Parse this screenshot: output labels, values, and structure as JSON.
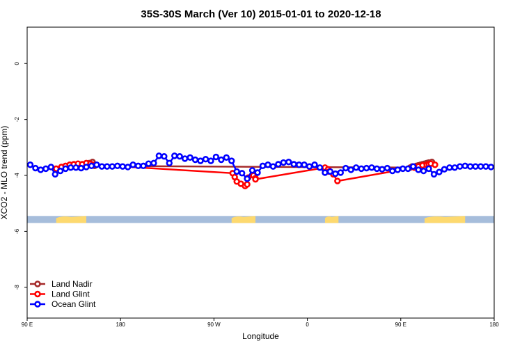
{
  "chart_data": {
    "type": "line",
    "title": "35S-30S March (Ver 10)   2015-01-01 to 2020-12-18",
    "xlabel": "Longitude",
    "ylabel": "XCO2 - MLO trend (ppm)",
    "xlim": [
      90,
      540
    ],
    "ylim": [
      -9.1,
      1.3
    ],
    "x_ticks": [
      {
        "value": 90,
        "label": "90 E"
      },
      {
        "value": 180,
        "label": "180"
      },
      {
        "value": 270,
        "label": "90 W"
      },
      {
        "value": 360,
        "label": "0"
      },
      {
        "value": 450,
        "label": "90 E"
      },
      {
        "value": 540,
        "label": "180"
      }
    ],
    "y_ticks": [
      {
        "value": 0,
        "label": "0"
      },
      {
        "value": -2,
        "label": "-2"
      },
      {
        "value": -4,
        "label": "-4"
      },
      {
        "value": -6,
        "label": "-6"
      },
      {
        "value": -8,
        "label": "-8"
      }
    ],
    "land_strip": {
      "y_range": [
        -5.7,
        -5.45
      ],
      "ocean_color": "#a6bddb",
      "land_color": "#fdd96f",
      "land_segments": [
        [
          118,
          147
        ],
        [
          287,
          310
        ],
        [
          377,
          390
        ],
        [
          473,
          512
        ]
      ]
    },
    "series": [
      {
        "name": "Land Nadir",
        "color": "#a52a2a",
        "x": [
          150,
          153,
          155,
          459,
          461,
          465,
          467,
          469,
          471,
          473,
          475,
          477,
          480
        ],
        "y": [
          -3.56,
          -3.52,
          -3.66,
          -3.72,
          -3.68,
          -3.66,
          -3.64,
          -3.62,
          -3.6,
          -3.58,
          -3.56,
          -3.54,
          -3.52
        ]
      },
      {
        "name": "Land Glint",
        "color": "#ff0000",
        "x": [
          118,
          123,
          127,
          131,
          135,
          139,
          143,
          147,
          151,
          153,
          288,
          290,
          292,
          296,
          300,
          302,
          303,
          308,
          310,
          310,
          377,
          380,
          381,
          385,
          389,
          463,
          467,
          471,
          475,
          477,
          479,
          483
        ],
        "y": [
          -3.76,
          -3.7,
          -3.66,
          -3.62,
          -3.6,
          -3.58,
          -3.6,
          -3.56,
          -3.58,
          -3.62,
          -3.92,
          -4.06,
          -4.22,
          -4.3,
          -4.38,
          -4.32,
          -4.08,
          -4.0,
          -4.1,
          -4.14,
          -3.72,
          -3.78,
          -3.86,
          -3.96,
          -4.2,
          -3.72,
          -3.68,
          -3.64,
          -3.62,
          -3.6,
          -3.58,
          -3.62
        ]
      },
      {
        "name": "Ocean Glint",
        "color": "#0000ff",
        "x": [
          93,
          98,
          103,
          108,
          113,
          117,
          122,
          127,
          132,
          137,
          142,
          147,
          152,
          157,
          162,
          167,
          172,
          177,
          182,
          187,
          192,
          197,
          202,
          207,
          212,
          217,
          222,
          227,
          232,
          237,
          242,
          247,
          252,
          257,
          262,
          267,
          272,
          277,
          282,
          287,
          292,
          297,
          302,
          307,
          312,
          317,
          322,
          327,
          332,
          337,
          342,
          347,
          352,
          357,
          362,
          367,
          372,
          377,
          382,
          387,
          392,
          397,
          402,
          407,
          412,
          417,
          422,
          427,
          432,
          437,
          442,
          447,
          452,
          457,
          462,
          467,
          472,
          477,
          482,
          487,
          492,
          497,
          502,
          507,
          512,
          517,
          522,
          527,
          532,
          537
        ],
        "y": [
          -3.62,
          -3.74,
          -3.8,
          -3.76,
          -3.7,
          -3.96,
          -3.84,
          -3.76,
          -3.72,
          -3.72,
          -3.74,
          -3.7,
          -3.66,
          -3.62,
          -3.68,
          -3.68,
          -3.68,
          -3.66,
          -3.68,
          -3.7,
          -3.62,
          -3.66,
          -3.66,
          -3.58,
          -3.56,
          -3.3,
          -3.32,
          -3.56,
          -3.3,
          -3.32,
          -3.4,
          -3.36,
          -3.44,
          -3.48,
          -3.42,
          -3.48,
          -3.34,
          -3.44,
          -3.36,
          -3.48,
          -3.86,
          -3.92,
          -4.12,
          -3.82,
          -3.9,
          -3.66,
          -3.62,
          -3.68,
          -3.6,
          -3.54,
          -3.52,
          -3.6,
          -3.62,
          -3.62,
          -3.68,
          -3.62,
          -3.72,
          -3.9,
          -3.86,
          -3.94,
          -3.9,
          -3.74,
          -3.8,
          -3.72,
          -3.76,
          -3.74,
          -3.72,
          -3.76,
          -3.78,
          -3.74,
          -3.84,
          -3.8,
          -3.76,
          -3.76,
          -3.68,
          -3.8,
          -3.84,
          -3.76,
          -3.96,
          -3.88,
          -3.78,
          -3.72,
          -3.72,
          -3.68,
          -3.66,
          -3.68,
          -3.68,
          -3.68,
          -3.68,
          -3.7
        ]
      }
    ],
    "legend": {
      "placement": "bottom-left",
      "entries": [
        "Land Nadir",
        "Land Glint",
        "Ocean Glint"
      ]
    }
  }
}
